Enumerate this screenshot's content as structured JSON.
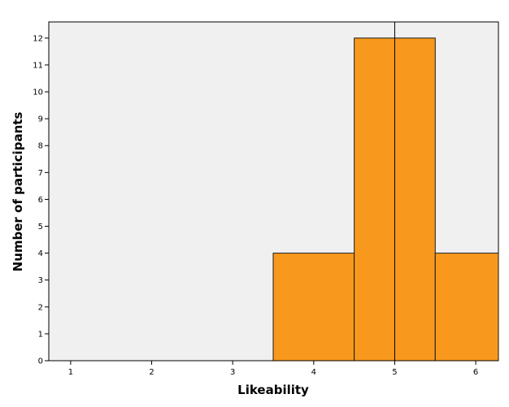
{
  "chart_data": {
    "type": "bar",
    "title": "",
    "xlabel": "Likeability",
    "ylabel": "Number of participants",
    "x_ticks": [
      1,
      2,
      3,
      4,
      5,
      6
    ],
    "y_ticks": [
      0,
      1,
      2,
      3,
      4,
      5,
      6,
      7,
      8,
      9,
      10,
      11,
      12
    ],
    "xlim": [
      0.73,
      6.28
    ],
    "ylim": [
      0,
      12.6
    ],
    "bins": [
      {
        "start": 3.5,
        "end": 4.5,
        "value": 4
      },
      {
        "start": 4.5,
        "end": 5.5,
        "value": 12
      },
      {
        "start": 5.5,
        "end": 6.5,
        "value": 4
      }
    ],
    "reference_line_x": 5,
    "grid": false,
    "colors": {
      "bar_fill": "#f8991d",
      "bar_stroke": "#1a1a1a",
      "plot_background": "#f0f0f0",
      "axis": "#000000"
    }
  }
}
